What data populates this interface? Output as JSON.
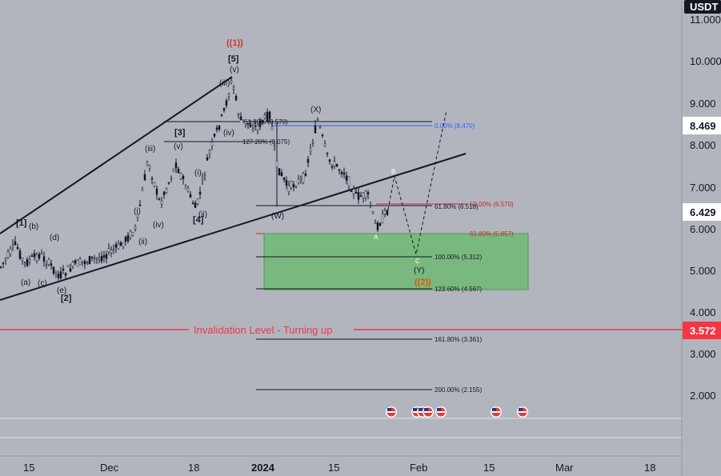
{
  "symbol": {
    "currency": "USDT"
  },
  "price_axis": {
    "ticks": [
      "11.000",
      "10.000",
      "9.000",
      "8.000",
      "7.000",
      "6.000",
      "5.000",
      "4.000",
      "3.000",
      "2.000"
    ],
    "tags": {
      "current_price": "8.469",
      "crosshair_price": "6.429",
      "invalidation_price": "3.572"
    }
  },
  "time_axis": {
    "ticks": [
      "15",
      "Dec",
      "18",
      "2024",
      "15",
      "Feb",
      "15",
      "Mar",
      "18"
    ]
  },
  "annotations": {
    "invalidation_text": "Invalidation Level - Turning up",
    "big_degree": "((1))",
    "big_degree_target": "((2))",
    "wave_labels": [
      "[5]",
      "(v)",
      "(iii)",
      "(iv)",
      "[3]",
      "(v)",
      "(iii)",
      "(iv)",
      "(ii)",
      "(i)",
      "(i)",
      "(ii)",
      "[4]",
      "[1]",
      "(b)",
      "(d)",
      "(a)",
      "(c)",
      "(e)",
      "[2]",
      "(X)",
      "(W)",
      "(Y)",
      "A",
      "B",
      "C"
    ],
    "fib_levels": {
      "f1": "61.80% (8.570)",
      "f2": "127.20% (8.075)",
      "f3": "0.00% (8.470)",
      "f4": "61.80% (6.518)",
      "f5": "50.00% (6.570)",
      "f6": "61.80% (5.857)",
      "f7": "100.00% (5.312)",
      "f8": "123.60% (4.567)",
      "f9": "161.80% (3.361)",
      "f10": "200.00% (2.155)"
    }
  },
  "colors": {
    "background": "#b2b5be",
    "invalidation": "#f23645",
    "price_tag_dark": "#131722",
    "target_zone": "#81c784",
    "fib_blue": "#2962ff",
    "fib_red": "#c62828",
    "wave_degree_red": "#d32f2f"
  },
  "icons": {
    "event_flags": "us-flag-icon"
  }
}
